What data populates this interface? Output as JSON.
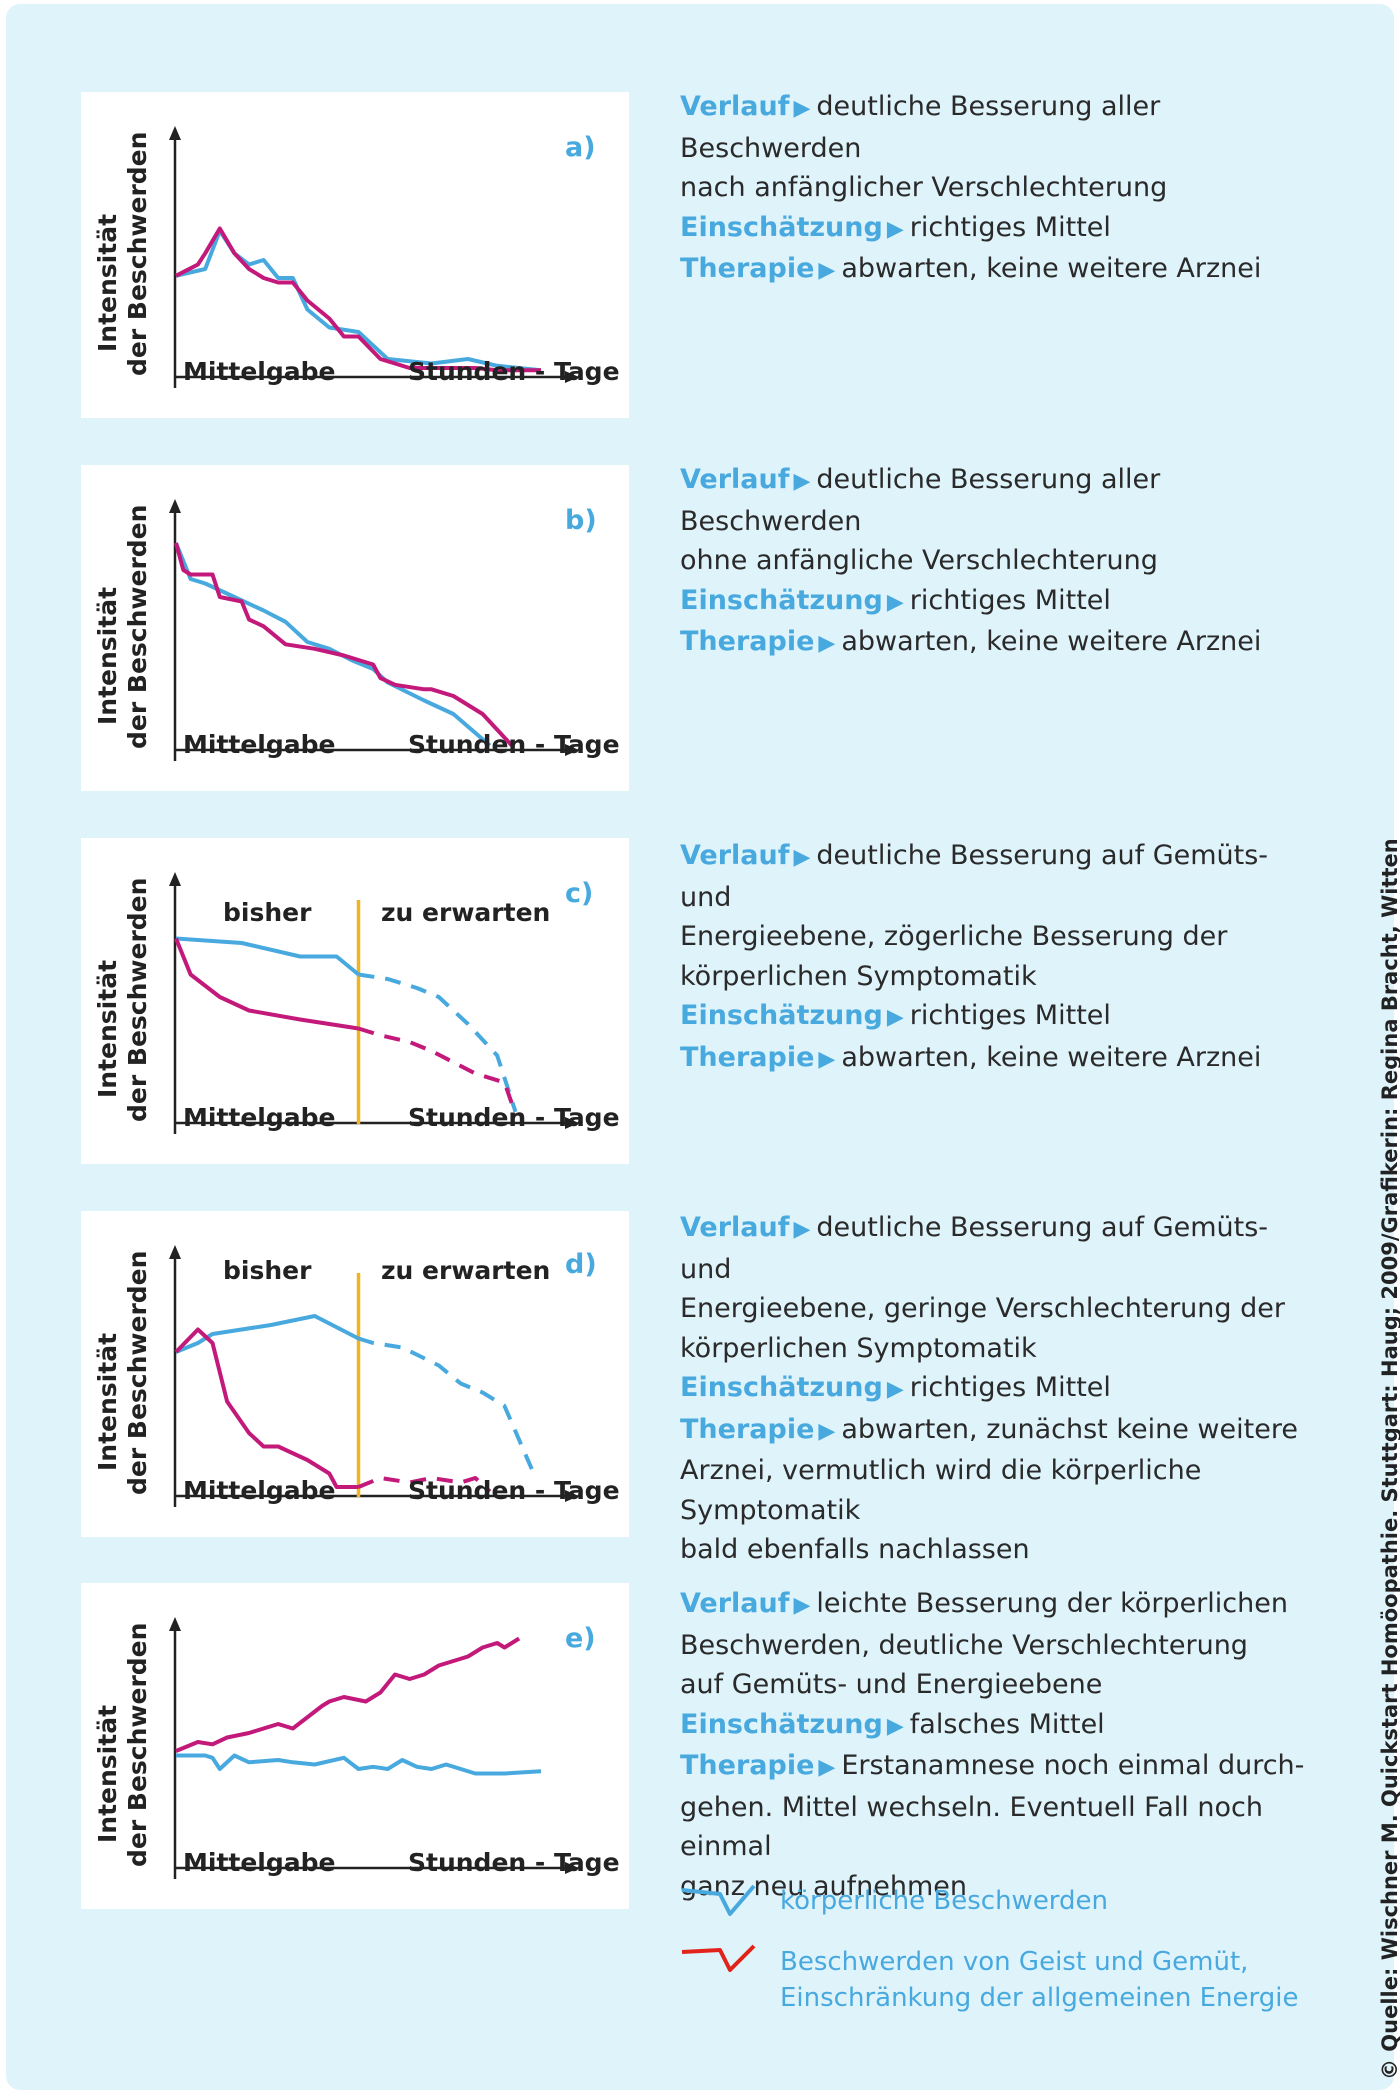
{
  "labels": {
    "ylabel_line1": "Intensität",
    "ylabel_line2": "der Beschwerden",
    "xlabel_left": "Mittelgabe",
    "xlabel_right": "Stunden - Tage",
    "bisher": "bisher",
    "zu_erwarten": "zu erwarten",
    "verlauf": "Verlauf",
    "einschaetzung": "Einschätzung",
    "therapie": "Therapie",
    "arrow": "▶"
  },
  "colors": {
    "physical": "#48a9df",
    "mind_energy": "#c3197a",
    "divider": "#f0b323",
    "panel_bg": "#ffffff",
    "page_bg": "#dff3fb",
    "legend_red": "#e2231a"
  },
  "panels": [
    {
      "tag": "a)",
      "verlauf": "deutliche Besserung aller Beschwerden",
      "verlauf_cont": "nach anfänglicher Verschlechterung",
      "einschaetzung": "richtiges Mittel",
      "therapie": "abwarten, keine weitere Arznei",
      "therapie_cont": ""
    },
    {
      "tag": "b)",
      "verlauf": "deutliche Besserung aller Beschwerden",
      "verlauf_cont": "ohne anfängliche Verschlechterung",
      "einschaetzung": "richtiges Mittel",
      "therapie": "abwarten, keine weitere Arznei",
      "therapie_cont": ""
    },
    {
      "tag": "c)",
      "verlauf": "deutliche Besserung auf Gemüts- und",
      "verlauf_cont": "Energieebene, zögerliche Besserung der\nkörperlichen Symptomatik",
      "einschaetzung": "richtiges Mittel",
      "therapie": "abwarten, keine weitere Arznei",
      "therapie_cont": ""
    },
    {
      "tag": "d)",
      "verlauf": "deutliche Besserung auf Gemüts- und",
      "verlauf_cont": "Energieebene, geringe Verschlechterung der\nkörperlichen Symptomatik",
      "einschaetzung": "richtiges Mittel",
      "therapie": "abwarten, zunächst keine weitere",
      "therapie_cont": "Arznei, vermutlich wird die körperliche Symptomatik\nbald ebenfalls nachlassen"
    },
    {
      "tag": "e)",
      "verlauf": "leichte Besserung der körperlichen",
      "verlauf_cont": "Beschwerden, deutliche Verschlechterung\nauf Gemüts- und Energieebene",
      "einschaetzung": "falsches Mittel",
      "therapie": "Erstanamnese noch einmal durch-",
      "therapie_cont": "gehen. Mittel wechseln. Eventuell Fall noch einmal\nganz neu aufnehmen"
    }
  ],
  "legend": {
    "physical": "körperliche Beschwerden",
    "mind": "Beschwerden von Geist und Gemüt,\nEinschränkung der allgemeinen Energie"
  },
  "source": "© Quelle: Wischner M. Quickstart Homöopathie. Stuttgart: Haug; 2009/Grafikerin: Regina Bracht, Witten",
  "chart_data": [
    {
      "type": "line",
      "panel": "a)",
      "xlim": [
        0,
        100
      ],
      "ylim": [
        0,
        100
      ],
      "series": [
        {
          "name": "körperliche Beschwerden",
          "x": [
            0,
            8,
            12,
            16,
            20,
            24,
            28,
            32,
            36,
            42,
            50,
            58,
            70,
            80,
            88,
            100
          ],
          "y": [
            45,
            48,
            65,
            55,
            50,
            52,
            44,
            44,
            30,
            22,
            20,
            8,
            6,
            8,
            5,
            3
          ],
          "dashed": false
        },
        {
          "name": "Beschwerden von Geist und Gemüt, Einschränkung der allgemeinen Energie",
          "x": [
            0,
            6,
            8,
            12,
            16,
            20,
            24,
            28,
            32,
            36,
            42,
            46,
            50,
            56,
            64,
            74,
            82,
            88,
            100
          ],
          "y": [
            45,
            50,
            55,
            66,
            55,
            48,
            44,
            42,
            42,
            34,
            26,
            18,
            18,
            8,
            4,
            4,
            4,
            3,
            3
          ],
          "dashed": false
        }
      ]
    },
    {
      "type": "line",
      "panel": "b)",
      "xlim": [
        0,
        100
      ],
      "ylim": [
        0,
        100
      ],
      "series": [
        {
          "name": "körperliche Beschwerden",
          "x": [
            0,
            4,
            8,
            16,
            24,
            30,
            36,
            42,
            48,
            54,
            58,
            68,
            76,
            86
          ],
          "y": [
            92,
            76,
            74,
            68,
            62,
            57,
            48,
            45,
            40,
            36,
            30,
            22,
            16,
            2
          ],
          "dashed": false
        },
        {
          "name": "Beschwerden von Geist und Gemüt, Einschränkung der allgemeinen Energie",
          "x": [
            0,
            2,
            4,
            10,
            12,
            18,
            20,
            24,
            30,
            38,
            46,
            54,
            56,
            60,
            68,
            70,
            76,
            84,
            92
          ],
          "y": [
            92,
            80,
            78,
            78,
            68,
            66,
            58,
            55,
            47,
            45,
            42,
            38,
            32,
            29,
            27,
            27,
            24,
            16,
            2
          ],
          "dashed": false
        }
      ]
    },
    {
      "type": "line",
      "panel": "c)",
      "xlim": [
        0,
        100
      ],
      "ylim": [
        0,
        100
      ],
      "divider_x": 50,
      "series": [
        {
          "name": "körperliche Beschwerden (bisher)",
          "x": [
            0,
            18,
            34,
            44,
            50
          ],
          "y": [
            82,
            80,
            74,
            74,
            66
          ],
          "dashed": false
        },
        {
          "name": "körperliche Beschwerden (zu erwarten)",
          "x": [
            50,
            58,
            66,
            72,
            80,
            88,
            93
          ],
          "y": [
            66,
            64,
            60,
            56,
            44,
            30,
            5
          ],
          "dashed": true
        },
        {
          "name": "Beschwerden von Geist und Gemüt (bisher)",
          "x": [
            0,
            4,
            12,
            20,
            34,
            50
          ],
          "y": [
            82,
            66,
            56,
            50,
            46,
            42
          ],
          "dashed": false
        },
        {
          "name": "Beschwerden von Geist und Gemüt (zu erwarten)",
          "x": [
            50,
            56,
            64,
            70,
            82,
            90,
            93
          ],
          "y": [
            42,
            39,
            36,
            32,
            22,
            18,
            4
          ],
          "dashed": true
        }
      ]
    },
    {
      "type": "line",
      "panel": "d)",
      "xlim": [
        0,
        100
      ],
      "ylim": [
        0,
        100
      ],
      "divider_x": 50,
      "series": [
        {
          "name": "körperliche Beschwerden (bisher)",
          "x": [
            0,
            6,
            10,
            26,
            38,
            50
          ],
          "y": [
            64,
            68,
            72,
            76,
            80,
            70
          ],
          "dashed": false
        },
        {
          "name": "körperliche Beschwerden (zu erwarten)",
          "x": [
            50,
            54,
            62,
            72,
            78,
            84,
            90,
            98
          ],
          "y": [
            70,
            68,
            66,
            58,
            50,
            46,
            40,
            10
          ],
          "dashed": true
        },
        {
          "name": "Beschwerden von Geist und Gemüt (bisher)",
          "x": [
            0,
            6,
            10,
            14,
            20,
            24,
            28,
            36,
            42,
            44,
            50
          ],
          "y": [
            64,
            74,
            68,
            42,
            28,
            22,
            22,
            16,
            10,
            4,
            4
          ],
          "dashed": false
        },
        {
          "name": "Beschwerden von Geist und Gemüt (zu erwarten)",
          "x": [
            50,
            56,
            64,
            70,
            78,
            82,
            86
          ],
          "y": [
            4,
            8,
            6,
            8,
            6,
            8,
            2
          ],
          "dashed": true
        }
      ]
    },
    {
      "type": "line",
      "panel": "e)",
      "xlim": [
        0,
        100
      ],
      "ylim": [
        0,
        100
      ],
      "series": [
        {
          "name": "körperliche Beschwerden",
          "x": [
            0,
            8,
            10,
            12,
            16,
            20,
            28,
            32,
            38,
            46,
            50,
            54,
            58,
            62,
            66,
            70,
            74,
            82,
            90,
            100
          ],
          "y": [
            50,
            50,
            49,
            44,
            50,
            47,
            48,
            47,
            46,
            49,
            44,
            45,
            44,
            48,
            45,
            44,
            46,
            42,
            42,
            43
          ],
          "dashed": false
        },
        {
          "name": "Beschwerden von Geist und Gemüt, Einschränkung der allgemeinen Energie",
          "x": [
            0,
            6,
            10,
            14,
            20,
            28,
            32,
            40,
            42,
            46,
            52,
            56,
            60,
            64,
            68,
            72,
            76,
            80,
            84,
            88,
            90,
            94
          ],
          "y": [
            52,
            56,
            55,
            58,
            60,
            64,
            62,
            72,
            74,
            76,
            74,
            78,
            86,
            84,
            86,
            90,
            92,
            94,
            98,
            100,
            98,
            102
          ],
          "dashed": false
        }
      ]
    }
  ]
}
